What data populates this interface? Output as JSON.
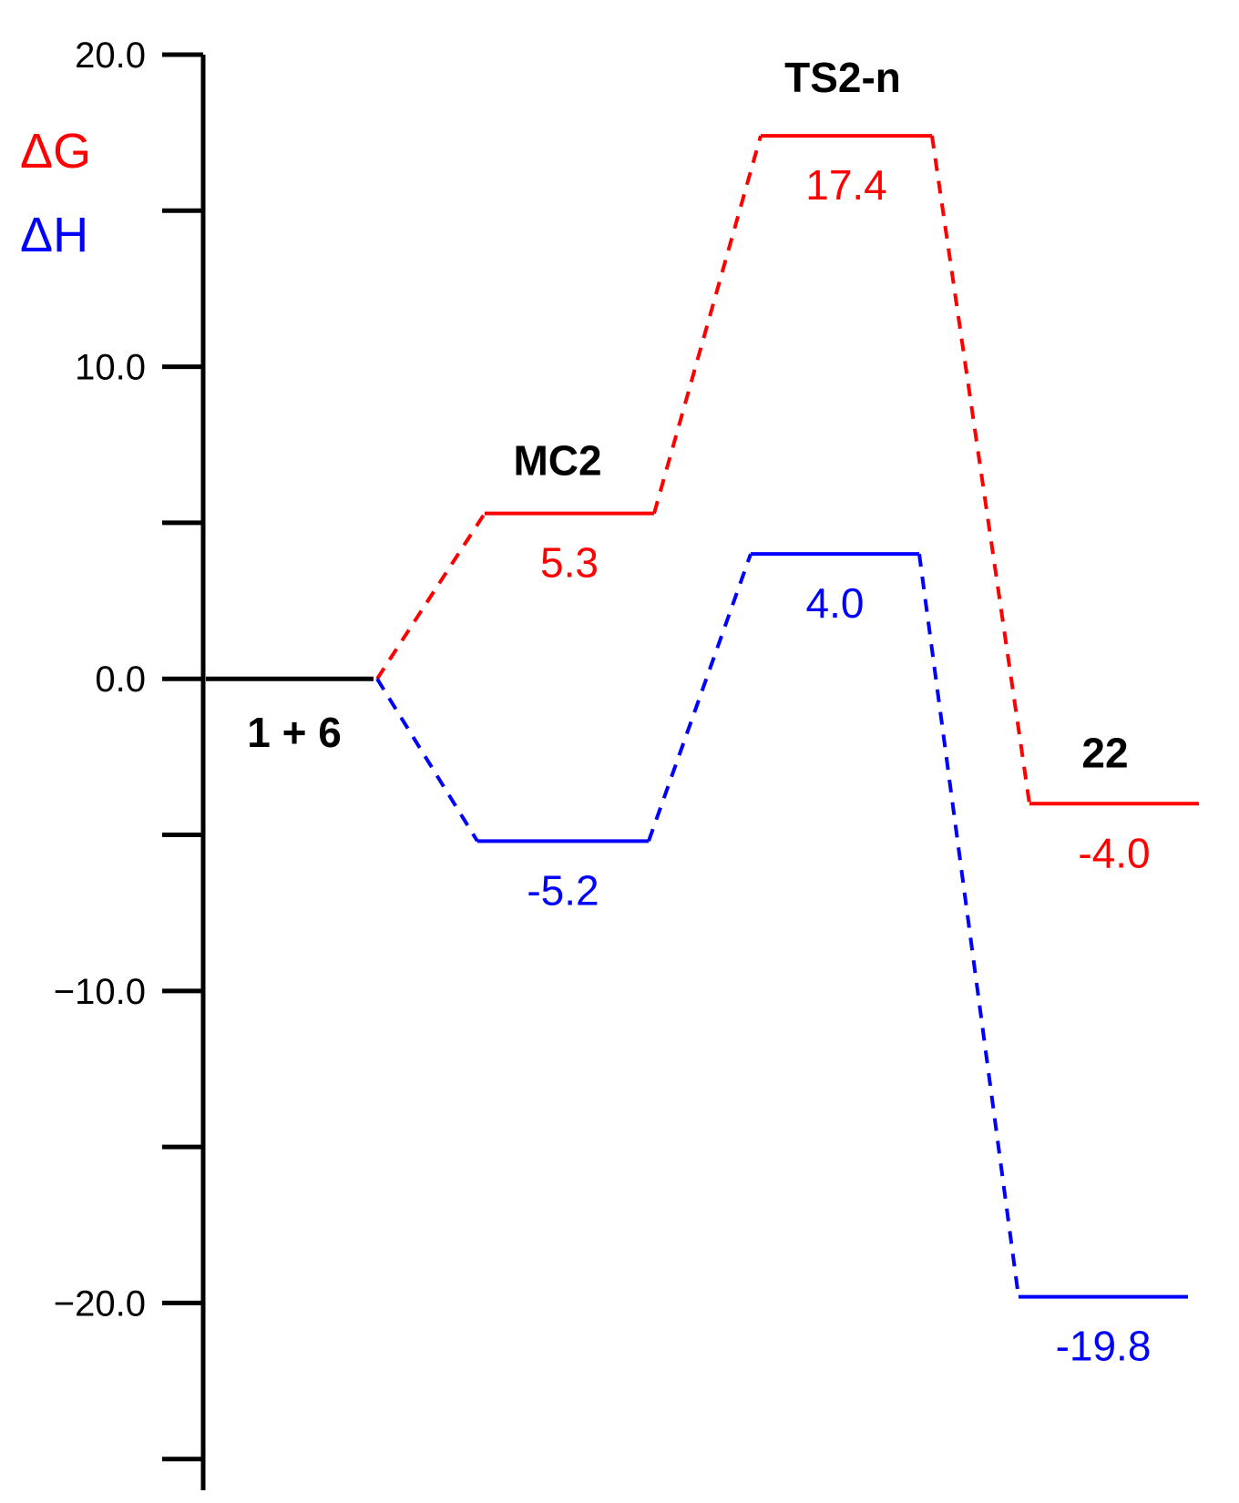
{
  "chart_data": {
    "type": "line",
    "title": "",
    "ylabel": "",
    "ylim": [
      -26.0,
      20.0
    ],
    "y_ticks": [
      20.0,
      15.0,
      10.0,
      5.0,
      0.0,
      -5.0,
      -10.0,
      -15.0,
      -20.0,
      -25.0
    ],
    "y_tick_labels": [
      "20.0",
      "",
      "10.0",
      "",
      "0.0",
      "",
      "−10.0",
      "",
      "−20.0",
      ""
    ],
    "categories": [
      "1 + 6",
      "MC2",
      "TS2-n",
      "22"
    ],
    "category_labels": [
      {
        "text": "1 + 6",
        "placement": "below"
      },
      {
        "text": "MC2",
        "placement": "above"
      },
      {
        "text": "TS2-n",
        "placement": "above"
      },
      {
        "text": "22",
        "placement": "above"
      }
    ],
    "reference": {
      "category": 0,
      "value": 0.0,
      "color": "#000000"
    },
    "series": [
      {
        "name": "ΔG",
        "color": "#ff0000",
        "points": [
          {
            "category": 0,
            "value": 0.0,
            "label": ""
          },
          {
            "category": 1,
            "value": 5.3,
            "label": "5.3"
          },
          {
            "category": 2,
            "value": 17.4,
            "label": "17.4"
          },
          {
            "category": 3,
            "value": -4.0,
            "label": "-4.0"
          }
        ]
      },
      {
        "name": "ΔH",
        "color": "#0000ff",
        "points": [
          {
            "category": 0,
            "value": 0.0,
            "label": ""
          },
          {
            "category": 1,
            "value": -5.2,
            "label": "-5.2"
          },
          {
            "category": 2,
            "value": 4.0,
            "label": "4.0"
          },
          {
            "category": 3,
            "value": -19.8,
            "label": "-19.8"
          }
        ]
      }
    ],
    "legend": {
      "placement": "top-left",
      "entries": [
        {
          "text": "ΔG",
          "color": "#ff0000"
        },
        {
          "text": "ΔH",
          "color": "#0000ff"
        }
      ]
    }
  }
}
